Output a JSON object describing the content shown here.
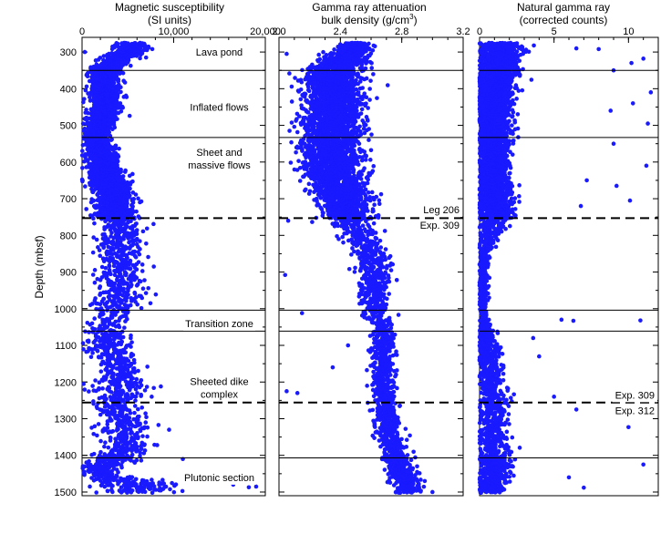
{
  "chart_data": {
    "type": "scatter",
    "ylabel": "Depth (mbsf)",
    "ylim": [
      1510,
      260
    ],
    "yticks": [
      300,
      400,
      500,
      600,
      700,
      800,
      900,
      1000,
      1100,
      1200,
      1300,
      1400,
      1500
    ],
    "point_color": "#1a1aff",
    "panels": [
      {
        "id": "magsus",
        "title_line1": "Magnetic susceptibility",
        "title_line2": "(SI units)",
        "xlim": [
          0,
          20000
        ],
        "xticks": [
          0,
          10000,
          20000
        ],
        "xtick_labels": [
          "0",
          "10,000",
          "20,000"
        ],
        "x_minor_step": 2000,
        "zone_labels": [
          {
            "depth": 300,
            "lines": [
              "Lava pond"
            ]
          },
          {
            "depth": 450,
            "lines": [
              "Inflated flows"
            ]
          },
          {
            "depth": 590,
            "lines": [
              "Sheet and",
              "massive flows"
            ]
          },
          {
            "depth": 1040,
            "lines": [
              "Transition zone"
            ]
          },
          {
            "depth": 1215,
            "lines": [
              "Sheeted dike",
              "complex"
            ]
          },
          {
            "depth": 1460,
            "lines": [
              "Plutonic section"
            ]
          }
        ],
        "boundary_labels": [],
        "profile": [
          {
            "d": 290,
            "x": 5500,
            "s": 1500
          },
          {
            "d": 350,
            "x": 2500,
            "s": 1300
          },
          {
            "d": 460,
            "x": 2500,
            "s": 1300
          },
          {
            "d": 530,
            "x": 1500,
            "s": 1000
          },
          {
            "d": 610,
            "x": 2500,
            "s": 1500
          },
          {
            "d": 700,
            "x": 3500,
            "s": 1800
          },
          {
            "d": 750,
            "x": 3500,
            "s": 1800
          },
          {
            "d": 780,
            "x": 4500,
            "s": 1800
          },
          {
            "d": 850,
            "x": 4000,
            "s": 2000
          },
          {
            "d": 920,
            "x": 4500,
            "s": 2200
          },
          {
            "d": 990,
            "x": 4000,
            "s": 2200
          },
          {
            "d": 1060,
            "x": 2500,
            "s": 1500
          },
          {
            "d": 1130,
            "x": 3500,
            "s": 2000
          },
          {
            "d": 1200,
            "x": 4500,
            "s": 2200
          },
          {
            "d": 1260,
            "x": 3500,
            "s": 2000
          },
          {
            "d": 1320,
            "x": 4500,
            "s": 2300
          },
          {
            "d": 1380,
            "x": 5000,
            "s": 2300
          },
          {
            "d": 1420,
            "x": 3000,
            "s": 2000
          },
          {
            "d": 1450,
            "x": 1500,
            "s": 1200
          },
          {
            "d": 1480,
            "x": 6000,
            "s": 3500
          },
          {
            "d": 1500,
            "x": 6000,
            "s": 3500
          }
        ],
        "outliers": [
          {
            "d": 300,
            "x": 300
          },
          {
            "d": 769,
            "x": 7800
          },
          {
            "d": 1480,
            "x": 16500
          },
          {
            "d": 1487,
            "x": 18200
          },
          {
            "d": 1485,
            "x": 19000
          },
          {
            "d": 1410,
            "x": 11000
          },
          {
            "d": 1330,
            "x": 9500
          },
          {
            "d": 1372,
            "x": 8200
          },
          {
            "d": 1212,
            "x": 8600
          },
          {
            "d": 1240,
            "x": 7600
          }
        ]
      },
      {
        "id": "density",
        "title_line1": "Gamma ray attenuation",
        "title_line2": "bulk density (g/cm³)",
        "xlim": [
          2.0,
          3.2
        ],
        "xticks": [
          2.0,
          2.4,
          2.8,
          3.2
        ],
        "xtick_labels": [
          "2.0",
          "2.4",
          "2.8",
          "3.2"
        ],
        "x_minor_step": 0.1,
        "zone_labels": [],
        "boundary_labels": [
          {
            "depth": 730,
            "text": "Leg 206"
          },
          {
            "depth": 772,
            "text": "Exp. 309"
          }
        ],
        "profile": [
          {
            "d": 290,
            "x": 2.5,
            "s": 0.08
          },
          {
            "d": 350,
            "x": 2.35,
            "s": 0.16
          },
          {
            "d": 460,
            "x": 2.35,
            "s": 0.16
          },
          {
            "d": 530,
            "x": 2.35,
            "s": 0.16
          },
          {
            "d": 610,
            "x": 2.35,
            "s": 0.16
          },
          {
            "d": 700,
            "x": 2.42,
            "s": 0.14
          },
          {
            "d": 750,
            "x": 2.45,
            "s": 0.13
          },
          {
            "d": 850,
            "x": 2.6,
            "s": 0.09
          },
          {
            "d": 990,
            "x": 2.62,
            "s": 0.08
          },
          {
            "d": 1060,
            "x": 2.68,
            "s": 0.06
          },
          {
            "d": 1200,
            "x": 2.68,
            "s": 0.06
          },
          {
            "d": 1320,
            "x": 2.7,
            "s": 0.07
          },
          {
            "d": 1420,
            "x": 2.78,
            "s": 0.07
          },
          {
            "d": 1500,
            "x": 2.85,
            "s": 0.08
          }
        ],
        "outliers": [
          {
            "d": 305,
            "x": 2.05
          },
          {
            "d": 760,
            "x": 2.06
          },
          {
            "d": 908,
            "x": 2.04
          },
          {
            "d": 1012,
            "x": 2.15
          },
          {
            "d": 1225,
            "x": 2.05
          },
          {
            "d": 1230,
            "x": 2.12
          },
          {
            "d": 1500,
            "x": 3.0
          },
          {
            "d": 1470,
            "x": 2.95
          },
          {
            "d": 1430,
            "x": 2.9
          },
          {
            "d": 1160,
            "x": 2.35
          },
          {
            "d": 1100,
            "x": 2.45
          }
        ]
      },
      {
        "id": "ngr",
        "title_line1": "Natural gamma ray",
        "title_line2": "(corrected counts)",
        "xlim": [
          0,
          12
        ],
        "xticks": [
          0,
          5,
          10
        ],
        "xtick_labels": [
          "0",
          "5",
          "10"
        ],
        "x_minor_step": 1,
        "zone_labels": [],
        "boundary_labels": [
          {
            "depth": 1235,
            "text": "Exp. 309"
          },
          {
            "depth": 1278,
            "text": "Exp. 312"
          }
        ],
        "profile": [
          {
            "d": 290,
            "x": 1.5,
            "s": 1.2
          },
          {
            "d": 400,
            "x": 1.0,
            "s": 1.0
          },
          {
            "d": 600,
            "x": 0.9,
            "s": 0.8
          },
          {
            "d": 750,
            "x": 1.0,
            "s": 1.0
          },
          {
            "d": 850,
            "x": 0.3,
            "s": 0.3
          },
          {
            "d": 1000,
            "x": 0.2,
            "s": 0.2
          },
          {
            "d": 1100,
            "x": 0.5,
            "s": 0.6
          },
          {
            "d": 1250,
            "x": 1.0,
            "s": 0.8
          },
          {
            "d": 1350,
            "x": 0.8,
            "s": 0.8
          },
          {
            "d": 1420,
            "x": 1.0,
            "s": 1.0
          },
          {
            "d": 1500,
            "x": 0.6,
            "s": 0.8
          }
        ],
        "outliers": [
          {
            "d": 290,
            "x": 6.5
          },
          {
            "d": 292,
            "x": 8.0
          },
          {
            "d": 330,
            "x": 10.2
          },
          {
            "d": 318,
            "x": 11.0
          },
          {
            "d": 350,
            "x": 9.0
          },
          {
            "d": 410,
            "x": 11.5
          },
          {
            "d": 440,
            "x": 10.3
          },
          {
            "d": 460,
            "x": 8.8
          },
          {
            "d": 495,
            "x": 11.3
          },
          {
            "d": 550,
            "x": 9.0
          },
          {
            "d": 610,
            "x": 11.2
          },
          {
            "d": 650,
            "x": 7.2
          },
          {
            "d": 665,
            "x": 9.2
          },
          {
            "d": 705,
            "x": 10.1
          },
          {
            "d": 720,
            "x": 6.8
          },
          {
            "d": 1030,
            "x": 5.5
          },
          {
            "d": 1033,
            "x": 6.3
          },
          {
            "d": 1032,
            "x": 10.8
          },
          {
            "d": 1080,
            "x": 3.6
          },
          {
            "d": 1130,
            "x": 4.0
          },
          {
            "d": 1240,
            "x": 5.0
          },
          {
            "d": 1275,
            "x": 6.5
          },
          {
            "d": 1323,
            "x": 10.0
          },
          {
            "d": 1425,
            "x": 11.0
          },
          {
            "d": 1488,
            "x": 7.0
          },
          {
            "d": 1460,
            "x": 6.0
          }
        ]
      }
    ],
    "boundaries": [
      {
        "depth": 350,
        "style": "solid"
      },
      {
        "depth": 533,
        "style": "solid"
      },
      {
        "depth": 753,
        "style": "dashed"
      },
      {
        "depth": 1004,
        "style": "solid"
      },
      {
        "depth": 1061,
        "style": "solid"
      },
      {
        "depth": 1256,
        "style": "dashed"
      },
      {
        "depth": 1407,
        "style": "solid"
      }
    ]
  }
}
